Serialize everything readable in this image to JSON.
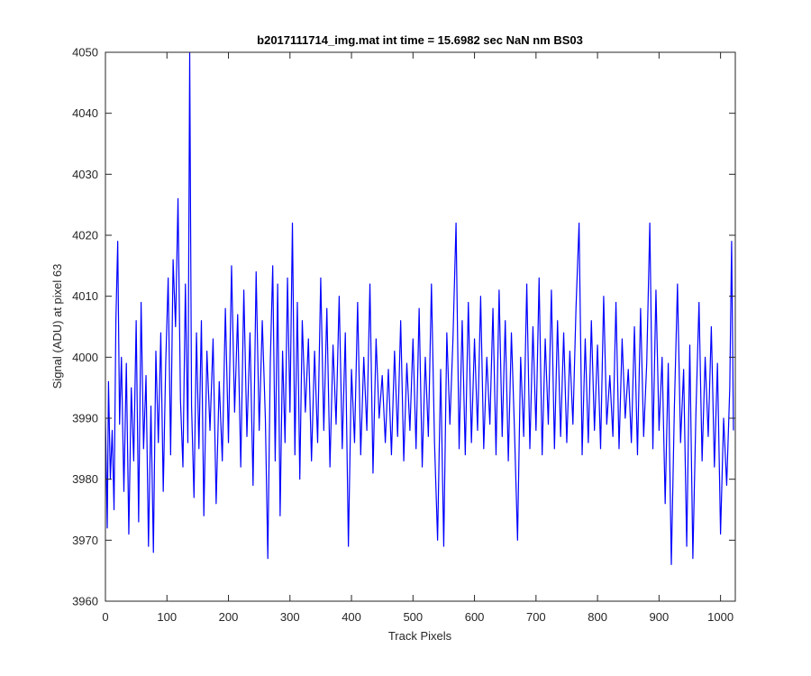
{
  "chart_data": {
    "type": "line",
    "title": "b2017111714_img.mat int time = 15.6982 sec  NaN nm BS03",
    "xlabel": "Track Pixels",
    "ylabel": "Signal (ADU) at pixel 63",
    "xlim": [
      0,
      1024
    ],
    "ylim": [
      3960,
      4050
    ],
    "xticks": [
      0,
      100,
      200,
      300,
      400,
      500,
      600,
      700,
      800,
      900,
      1000
    ],
    "yticks": [
      3960,
      3970,
      3980,
      3990,
      4000,
      4010,
      4020,
      4030,
      4040,
      4050
    ],
    "grid": false,
    "series": [
      {
        "color": "#0000ff",
        "points": [
          [
            0,
            3990
          ],
          [
            3,
            3972
          ],
          [
            5,
            3996
          ],
          [
            8,
            3980
          ],
          [
            11,
            3988
          ],
          [
            14,
            3975
          ],
          [
            17,
            4006
          ],
          [
            20,
            4019
          ],
          [
            23,
            3989
          ],
          [
            26,
            4000
          ],
          [
            30,
            3978
          ],
          [
            34,
            3999
          ],
          [
            38,
            3971
          ],
          [
            42,
            3995
          ],
          [
            46,
            3983
          ],
          [
            50,
            4006
          ],
          [
            54,
            3973
          ],
          [
            58,
            4009
          ],
          [
            62,
            3985
          ],
          [
            66,
            3997
          ],
          [
            70,
            3969
          ],
          [
            74,
            3992
          ],
          [
            78,
            3968
          ],
          [
            82,
            4001
          ],
          [
            86,
            3986
          ],
          [
            90,
            4004
          ],
          [
            94,
            3978
          ],
          [
            98,
            3999
          ],
          [
            102,
            4013
          ],
          [
            106,
            3984
          ],
          [
            110,
            4016
          ],
          [
            114,
            4005
          ],
          [
            118,
            4026
          ],
          [
            122,
            3993
          ],
          [
            126,
            3982
          ],
          [
            130,
            4012
          ],
          [
            134,
            3986
          ],
          [
            137,
            4050
          ],
          [
            140,
            3992
          ],
          [
            144,
            3977
          ],
          [
            148,
            4004
          ],
          [
            152,
            3985
          ],
          [
            156,
            4006
          ],
          [
            160,
            3974
          ],
          [
            165,
            4001
          ],
          [
            170,
            3988
          ],
          [
            175,
            4003
          ],
          [
            180,
            3976
          ],
          [
            185,
            3996
          ],
          [
            190,
            3983
          ],
          [
            195,
            4008
          ],
          [
            200,
            3986
          ],
          [
            205,
            4015
          ],
          [
            210,
            3991
          ],
          [
            215,
            4007
          ],
          [
            220,
            3982
          ],
          [
            225,
            4011
          ],
          [
            230,
            3987
          ],
          [
            235,
            4004
          ],
          [
            240,
            3979
          ],
          [
            245,
            4014
          ],
          [
            250,
            3988
          ],
          [
            255,
            4006
          ],
          [
            260,
            3990
          ],
          [
            264,
            3967
          ],
          [
            268,
            3999
          ],
          [
            272,
            4015
          ],
          [
            276,
            3983
          ],
          [
            280,
            4012
          ],
          [
            284,
            3974
          ],
          [
            288,
            4001
          ],
          [
            292,
            3986
          ],
          [
            296,
            4013
          ],
          [
            300,
            3991
          ],
          [
            304,
            4022
          ],
          [
            308,
            3984
          ],
          [
            312,
            4009
          ],
          [
            316,
            3980
          ],
          [
            320,
            4006
          ],
          [
            325,
            3991
          ],
          [
            330,
            4003
          ],
          [
            335,
            3983
          ],
          [
            340,
            4001
          ],
          [
            345,
            3986
          ],
          [
            350,
            4013
          ],
          [
            355,
            3988
          ],
          [
            360,
            4008
          ],
          [
            365,
            3982
          ],
          [
            370,
            4002
          ],
          [
            375,
            3989
          ],
          [
            380,
            4010
          ],
          [
            385,
            3985
          ],
          [
            390,
            4004
          ],
          [
            395,
            3969
          ],
          [
            400,
            3998
          ],
          [
            405,
            3986
          ],
          [
            410,
            4009
          ],
          [
            415,
            3984
          ],
          [
            420,
            4000
          ],
          [
            425,
            3988
          ],
          [
            430,
            4012
          ],
          [
            435,
            3981
          ],
          [
            440,
            4003
          ],
          [
            445,
            3990
          ],
          [
            450,
            3997
          ],
          [
            455,
            3986
          ],
          [
            460,
            3998
          ],
          [
            465,
            3984
          ],
          [
            470,
            4001
          ],
          [
            475,
            3987
          ],
          [
            480,
            4006
          ],
          [
            485,
            3983
          ],
          [
            490,
            3999
          ],
          [
            495,
            3988
          ],
          [
            500,
            4003
          ],
          [
            505,
            3985
          ],
          [
            510,
            4008
          ],
          [
            515,
            3982
          ],
          [
            520,
            4000
          ],
          [
            525,
            3987
          ],
          [
            530,
            4012
          ],
          [
            535,
            3986
          ],
          [
            540,
            3970
          ],
          [
            545,
            3998
          ],
          [
            550,
            3969
          ],
          [
            555,
            4004
          ],
          [
            560,
            3989
          ],
          [
            565,
            4003
          ],
          [
            570,
            4022
          ],
          [
            575,
            3985
          ],
          [
            580,
            4006
          ],
          [
            585,
            3984
          ],
          [
            590,
            4009
          ],
          [
            595,
            3986
          ],
          [
            600,
            4003
          ],
          [
            605,
            3988
          ],
          [
            610,
            4010
          ],
          [
            615,
            3985
          ],
          [
            620,
            4000
          ],
          [
            625,
            3989
          ],
          [
            630,
            4008
          ],
          [
            635,
            3984
          ],
          [
            640,
            4011
          ],
          [
            645,
            3987
          ],
          [
            650,
            4006
          ],
          [
            655,
            3983
          ],
          [
            660,
            4004
          ],
          [
            665,
            3988
          ],
          [
            670,
            3970
          ],
          [
            675,
            4000
          ],
          [
            680,
            3987
          ],
          [
            685,
            4012
          ],
          [
            690,
            3985
          ],
          [
            695,
            4005
          ],
          [
            700,
            3988
          ],
          [
            705,
            4013
          ],
          [
            710,
            3984
          ],
          [
            715,
            4003
          ],
          [
            720,
            3989
          ],
          [
            725,
            4011
          ],
          [
            730,
            3985
          ],
          [
            735,
            4006
          ],
          [
            740,
            3987
          ],
          [
            745,
            4004
          ],
          [
            750,
            3986
          ],
          [
            755,
            4001
          ],
          [
            760,
            3989
          ],
          [
            765,
            4008
          ],
          [
            770,
            4022
          ],
          [
            775,
            3984
          ],
          [
            780,
            4003
          ],
          [
            785,
            3986
          ],
          [
            790,
            4006
          ],
          [
            795,
            3988
          ],
          [
            800,
            4002
          ],
          [
            805,
            3985
          ],
          [
            810,
            4010
          ],
          [
            815,
            3989
          ],
          [
            820,
            3997
          ],
          [
            825,
            3987
          ],
          [
            830,
            4009
          ],
          [
            835,
            3985
          ],
          [
            840,
            4003
          ],
          [
            845,
            3990
          ],
          [
            850,
            3998
          ],
          [
            855,
            3986
          ],
          [
            860,
            4005
          ],
          [
            865,
            3984
          ],
          [
            870,
            4008
          ],
          [
            875,
            3987
          ],
          [
            880,
            3999
          ],
          [
            885,
            4022
          ],
          [
            890,
            3985
          ],
          [
            895,
            4011
          ],
          [
            900,
            3988
          ],
          [
            905,
            4000
          ],
          [
            910,
            3976
          ],
          [
            915,
            3999
          ],
          [
            920,
            3966
          ],
          [
            925,
            3992
          ],
          [
            930,
            4012
          ],
          [
            935,
            3986
          ],
          [
            940,
            3998
          ],
          [
            945,
            3969
          ],
          [
            950,
            4002
          ],
          [
            955,
            3967
          ],
          [
            960,
            3991
          ],
          [
            965,
            4009
          ],
          [
            970,
            3983
          ],
          [
            975,
            4000
          ],
          [
            980,
            3987
          ],
          [
            985,
            4005
          ],
          [
            990,
            3982
          ],
          [
            995,
            3999
          ],
          [
            1000,
            3971
          ],
          [
            1005,
            3990
          ],
          [
            1010,
            3979
          ],
          [
            1015,
            3995
          ],
          [
            1018,
            4019
          ],
          [
            1021,
            3988
          ]
        ]
      }
    ]
  }
}
